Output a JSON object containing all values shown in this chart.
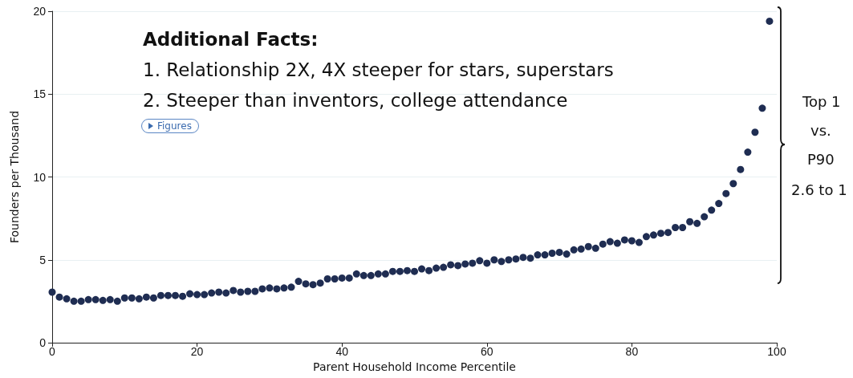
{
  "chart_data": {
    "type": "scatter",
    "xlabel": "Parent Household Income Percentile",
    "ylabel": "Founders per Thousand",
    "x": [
      0,
      1,
      2,
      3,
      4,
      5,
      6,
      7,
      8,
      9,
      10,
      11,
      12,
      13,
      14,
      15,
      16,
      17,
      18,
      19,
      20,
      21,
      22,
      23,
      24,
      25,
      26,
      27,
      28,
      29,
      30,
      31,
      32,
      33,
      34,
      35,
      36,
      37,
      38,
      39,
      40,
      41,
      42,
      43,
      44,
      45,
      46,
      47,
      48,
      49,
      50,
      51,
      52,
      53,
      54,
      55,
      56,
      57,
      58,
      59,
      60,
      61,
      62,
      63,
      64,
      65,
      66,
      67,
      68,
      69,
      70,
      71,
      72,
      73,
      74,
      75,
      76,
      77,
      78,
      79,
      80,
      81,
      82,
      83,
      84,
      85,
      86,
      87,
      88,
      89,
      90,
      91,
      92,
      93,
      94,
      95,
      96,
      97,
      98,
      99
    ],
    "series": [
      {
        "color": "#1f2d52",
        "values": [
          3.05,
          2.75,
          2.65,
          2.5,
          2.5,
          2.6,
          2.6,
          2.55,
          2.6,
          2.5,
          2.7,
          2.7,
          2.65,
          2.75,
          2.7,
          2.85,
          2.85,
          2.85,
          2.8,
          2.95,
          2.9,
          2.9,
          3.0,
          3.05,
          3.0,
          3.15,
          3.05,
          3.1,
          3.1,
          3.25,
          3.3,
          3.25,
          3.3,
          3.35,
          3.7,
          3.55,
          3.5,
          3.6,
          3.85,
          3.85,
          3.9,
          3.9,
          4.15,
          4.05,
          4.05,
          4.15,
          4.15,
          4.3,
          4.3,
          4.35,
          4.3,
          4.45,
          4.35,
          4.5,
          4.55,
          4.7,
          4.65,
          4.75,
          4.8,
          4.95,
          4.8,
          5.0,
          4.9,
          5.0,
          5.05,
          5.15,
          5.1,
          5.3,
          5.3,
          5.4,
          5.45,
          5.35,
          5.6,
          5.65,
          5.8,
          5.7,
          5.95,
          6.1,
          6.0,
          6.2,
          6.15,
          6.05,
          6.4,
          6.5,
          6.6,
          6.65,
          6.95,
          6.95,
          7.3,
          7.2,
          7.6,
          8.0,
          8.4,
          9.0,
          9.6,
          10.45,
          11.5,
          12.7,
          14.15,
          19.4
        ]
      }
    ],
    "xlim": [
      0,
      100
    ],
    "xticks": [
      0,
      20,
      40,
      60,
      80,
      100
    ],
    "ylim": [
      0,
      20
    ],
    "yticks": [
      0,
      5,
      10,
      15,
      20
    ],
    "grid": "y",
    "marker": "circle",
    "annotations": [
      "Additional Facts:",
      "1. Relationship 2X, 4X steeper for stars, superstars",
      "2. Steeper than inventors, college attendance",
      "Figures",
      "Top 1",
      "vs.",
      "P90",
      "2.6 to 1"
    ]
  }
}
